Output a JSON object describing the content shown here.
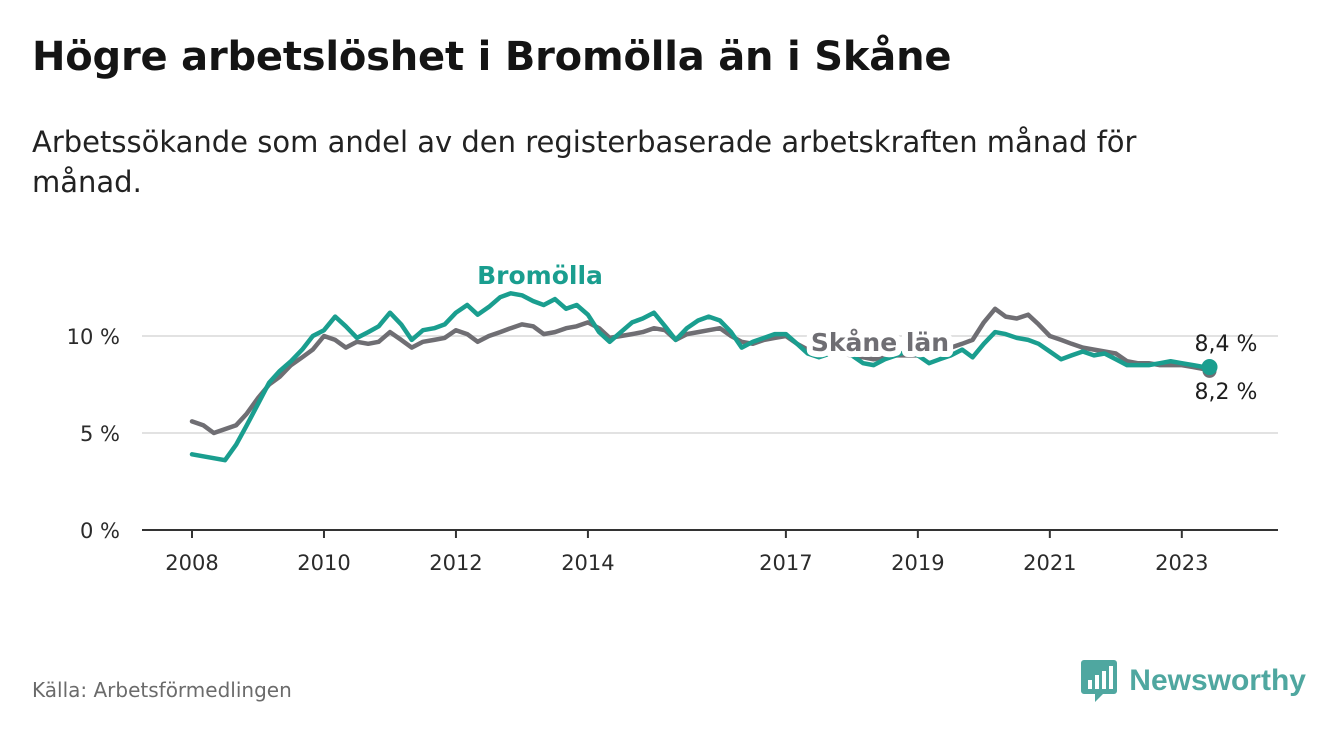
{
  "header": {
    "title": "Högre arbetslöshet i Bromölla än i Skåne",
    "subtitle": "Arbetssökande som andel av den registerbaserade arbetskraften månad för månad."
  },
  "footer": {
    "source": "Källa: Arbetsförmedlingen",
    "brand": "Newsworthy",
    "brand_icon": "bar-chart-icon"
  },
  "colors": {
    "bromolla": "#1a9e8f",
    "skane": "#6f6e73",
    "grid": "#d9d9d9",
    "axis": "#333333",
    "brand": "#4fa7a0"
  },
  "chart_data": {
    "type": "line",
    "title": "Högre arbetslöshet i Bromölla än i Skåne",
    "xlabel": "",
    "ylabel": "",
    "ylim": [
      0,
      10
    ],
    "xlim": [
      2008.0,
      2023.7
    ],
    "y_ticks": [
      0,
      5,
      10
    ],
    "y_tick_labels": [
      "0 %",
      "5 %",
      "10 %"
    ],
    "x_ticks": [
      2008,
      2010,
      2012,
      2014,
      2017,
      2019,
      2021,
      2023
    ],
    "x_tick_labels": [
      "2008",
      "2010",
      "2012",
      "2014",
      "2017",
      "2019",
      "2021",
      "2023"
    ],
    "grid": true,
    "series": [
      {
        "name": "Bromölla",
        "label": "Bromölla",
        "end_label": "8,4 %",
        "end_value": 8.4,
        "x": [
          2008.0,
          2008.17,
          2008.33,
          2008.5,
          2008.67,
          2008.83,
          2009.0,
          2009.17,
          2009.33,
          2009.5,
          2009.67,
          2009.83,
          2010.0,
          2010.17,
          2010.33,
          2010.5,
          2010.67,
          2010.83,
          2011.0,
          2011.17,
          2011.33,
          2011.5,
          2011.67,
          2011.83,
          2012.0,
          2012.17,
          2012.33,
          2012.5,
          2012.67,
          2012.83,
          2013.0,
          2013.17,
          2013.33,
          2013.5,
          2013.67,
          2013.83,
          2014.0,
          2014.17,
          2014.33,
          2014.5,
          2014.67,
          2014.83,
          2015.0,
          2015.17,
          2015.33,
          2015.5,
          2015.67,
          2015.83,
          2016.0,
          2016.17,
          2016.33,
          2016.5,
          2016.67,
          2016.83,
          2017.0,
          2017.17,
          2017.33,
          2017.5,
          2017.67,
          2017.83,
          2018.0,
          2018.17,
          2018.33,
          2018.5,
          2018.67,
          2018.83,
          2019.0,
          2019.17,
          2019.33,
          2019.5,
          2019.67,
          2019.83,
          2020.0,
          2020.17,
          2020.33,
          2020.5,
          2020.67,
          2020.83,
          2021.0,
          2021.17,
          2021.33,
          2021.5,
          2021.67,
          2021.83,
          2022.0,
          2022.17,
          2022.33,
          2022.5,
          2022.67,
          2022.83,
          2023.0,
          2023.17,
          2023.33,
          2023.42
        ],
        "values": [
          3.9,
          3.8,
          3.7,
          3.6,
          4.4,
          5.4,
          6.5,
          7.6,
          8.2,
          8.7,
          9.3,
          10.0,
          10.3,
          11.0,
          10.5,
          9.9,
          10.2,
          10.5,
          11.2,
          10.6,
          9.8,
          10.3,
          10.4,
          10.6,
          11.2,
          11.6,
          11.1,
          11.5,
          12.0,
          12.2,
          12.1,
          11.8,
          11.6,
          11.9,
          11.4,
          11.6,
          11.1,
          10.2,
          9.7,
          10.2,
          10.7,
          10.9,
          11.2,
          10.5,
          9.8,
          10.4,
          10.8,
          11.0,
          10.8,
          10.2,
          9.4,
          9.7,
          9.9,
          10.1,
          10.1,
          9.6,
          9.1,
          8.9,
          9.1,
          9.2,
          9.0,
          8.6,
          8.5,
          8.8,
          9.0,
          9.2,
          9.0,
          8.6,
          8.8,
          9.0,
          9.3,
          8.9,
          9.6,
          10.2,
          10.1,
          9.9,
          9.8,
          9.6,
          9.2,
          8.8,
          9.0,
          9.2,
          9.0,
          9.1,
          8.8,
          8.5,
          8.5,
          8.5,
          8.6,
          8.7,
          8.6,
          8.5,
          8.4,
          8.4
        ]
      },
      {
        "name": "Skåne län",
        "label": "Skåne län",
        "end_label": "8,2 %",
        "end_value": 8.2,
        "x": [
          2008.0,
          2008.17,
          2008.33,
          2008.5,
          2008.67,
          2008.83,
          2009.0,
          2009.17,
          2009.33,
          2009.5,
          2009.67,
          2009.83,
          2010.0,
          2010.17,
          2010.33,
          2010.5,
          2010.67,
          2010.83,
          2011.0,
          2011.17,
          2011.33,
          2011.5,
          2011.67,
          2011.83,
          2012.0,
          2012.17,
          2012.33,
          2012.5,
          2012.67,
          2012.83,
          2013.0,
          2013.17,
          2013.33,
          2013.5,
          2013.67,
          2013.83,
          2014.0,
          2014.17,
          2014.33,
          2014.5,
          2014.67,
          2014.83,
          2015.0,
          2015.17,
          2015.33,
          2015.5,
          2015.67,
          2015.83,
          2016.0,
          2016.17,
          2016.33,
          2016.5,
          2016.67,
          2016.83,
          2017.0,
          2017.17,
          2017.33,
          2017.5,
          2017.67,
          2017.83,
          2018.0,
          2018.17,
          2018.33,
          2018.5,
          2018.67,
          2018.83,
          2019.0,
          2019.17,
          2019.33,
          2019.5,
          2019.67,
          2019.83,
          2020.0,
          2020.17,
          2020.33,
          2020.5,
          2020.67,
          2020.83,
          2021.0,
          2021.17,
          2021.33,
          2021.5,
          2021.67,
          2021.83,
          2022.0,
          2022.17,
          2022.33,
          2022.5,
          2022.67,
          2022.83,
          2023.0,
          2023.17,
          2023.33,
          2023.42
        ],
        "values": [
          5.6,
          5.4,
          5.0,
          5.2,
          5.4,
          6.0,
          6.8,
          7.5,
          7.9,
          8.5,
          8.9,
          9.3,
          10.0,
          9.8,
          9.4,
          9.7,
          9.6,
          9.7,
          10.2,
          9.8,
          9.4,
          9.7,
          9.8,
          9.9,
          10.3,
          10.1,
          9.7,
          10.0,
          10.2,
          10.4,
          10.6,
          10.5,
          10.1,
          10.2,
          10.4,
          10.5,
          10.7,
          10.4,
          9.9,
          10.0,
          10.1,
          10.2,
          10.4,
          10.3,
          9.8,
          10.1,
          10.2,
          10.3,
          10.4,
          10.0,
          9.7,
          9.6,
          9.8,
          9.9,
          10.0,
          9.6,
          9.3,
          9.1,
          9.1,
          9.1,
          9.0,
          8.9,
          8.8,
          8.9,
          9.0,
          9.0,
          9.0,
          9.1,
          9.3,
          9.4,
          9.6,
          9.8,
          10.7,
          11.4,
          11.0,
          10.9,
          11.1,
          10.6,
          10.0,
          9.8,
          9.6,
          9.4,
          9.3,
          9.2,
          9.1,
          8.7,
          8.6,
          8.6,
          8.5,
          8.5,
          8.5,
          8.4,
          8.3,
          8.2
        ]
      }
    ]
  }
}
